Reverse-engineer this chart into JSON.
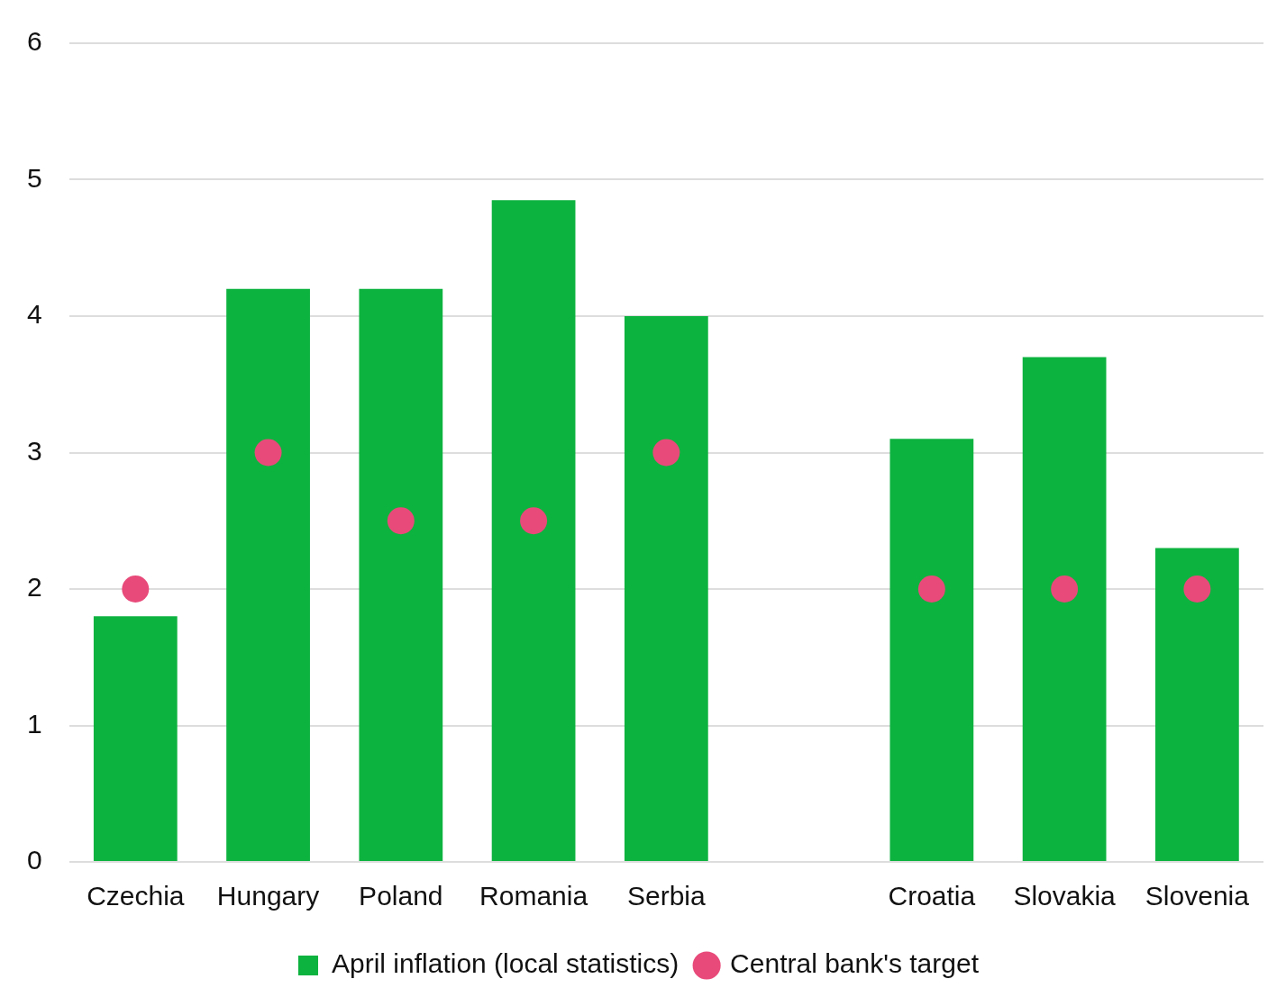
{
  "chart_data": {
    "type": "bar",
    "categories": [
      "Czechia",
      "Hungary",
      "Poland",
      "Romania",
      "Serbia",
      null,
      "Croatia",
      "Slovakia",
      "Slovenia"
    ],
    "series": [
      {
        "name": "April inflation (local statistics)",
        "color": "#0db33f",
        "values": [
          1.8,
          4.2,
          4.2,
          4.85,
          4.0,
          null,
          3.1,
          3.7,
          2.3
        ]
      },
      {
        "name": "Central bank's target",
        "type": "scatter",
        "color": "#e84a7a",
        "marker": "circle",
        "values": [
          2,
          3,
          2.5,
          2.5,
          3,
          null,
          2,
          2,
          2
        ]
      }
    ],
    "ylim": [
      0,
      6
    ],
    "yticks": [
      0,
      1,
      2,
      3,
      4,
      5,
      6
    ],
    "grid": "y",
    "legend": "bottom"
  }
}
